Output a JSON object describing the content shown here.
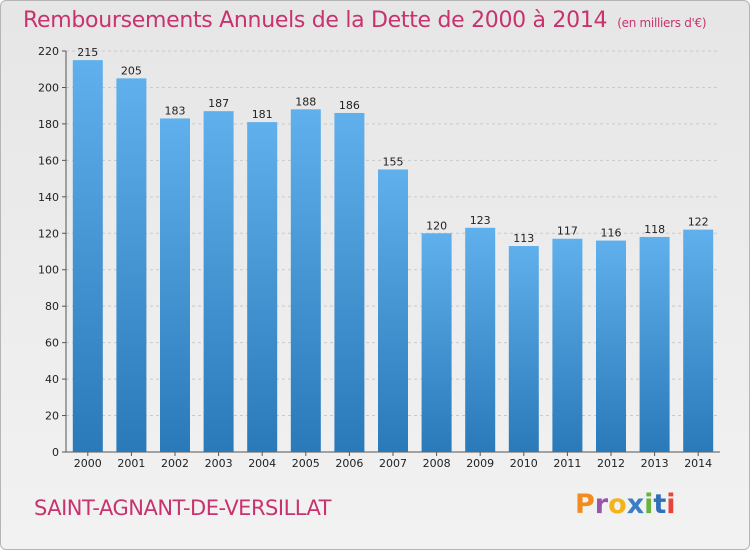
{
  "header": {
    "title": "Remboursements Annuels de la Dette de 2000 à 2014",
    "unit": "(en milliers d'€)"
  },
  "footer": {
    "commune": "SAINT-AGNANT-DE-VERSILLAT",
    "logo": "Proxiti",
    "logo_colors": [
      "#f28c1e",
      "#9a55a8",
      "#f2b31b",
      "#3a7fc6",
      "#69b33d",
      "#2f6fb8",
      "#e8443a"
    ]
  },
  "colors": {
    "bar_top": "#5fb0ec",
    "bar_bottom": "#2a79b9",
    "accent": "#c8326e"
  },
  "chart_data": {
    "type": "bar",
    "title": "Remboursements Annuels de la Dette de 2000 à 2014",
    "xlabel": "",
    "ylabel": "",
    "categories": [
      "2000",
      "2001",
      "2002",
      "2003",
      "2004",
      "2005",
      "2006",
      "2007",
      "2008",
      "2009",
      "2010",
      "2011",
      "2012",
      "2013",
      "2014"
    ],
    "values": [
      215,
      205,
      183,
      187,
      181,
      188,
      186,
      155,
      120,
      123,
      113,
      117,
      116,
      118,
      122
    ],
    "ylim": [
      0,
      220
    ],
    "yticks": [
      0,
      20,
      40,
      60,
      80,
      100,
      120,
      140,
      160,
      180,
      200,
      220
    ],
    "grid": true,
    "data_labels": true
  }
}
